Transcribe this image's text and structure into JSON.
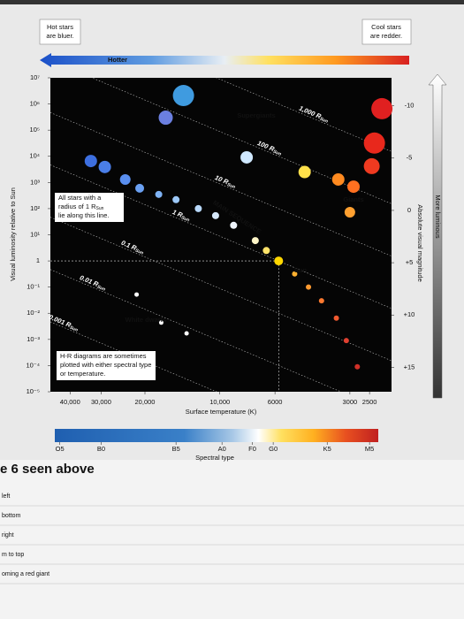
{
  "header": {
    "hot_note": [
      "Hot stars",
      "are bluer."
    ],
    "cool_note": [
      "Cool stars",
      "are redder."
    ],
    "arrow_label": "Hotter"
  },
  "chart_data": {
    "type": "scatter",
    "x_label": "Surface temperature (K)",
    "y_label": "Visual luminosity relative to Sun",
    "y2_label": "Absolute visual magnitude",
    "x2_label": "Spectral type",
    "side_arrow_label": "More luminous",
    "xscale": "log",
    "yscale": "log",
    "xlim": [
      48000,
      2040
    ],
    "ylim": [
      1e-05,
      10000000
    ],
    "xticks": [
      {
        "value": 40000,
        "label": "40,000"
      },
      {
        "value": 30000,
        "label": "30,000"
      },
      {
        "value": 20000,
        "label": "20,000"
      },
      {
        "value": 10000,
        "label": "10,000"
      },
      6000,
      3000,
      2500
    ],
    "yticks": [
      {
        "value": 10000000,
        "label": "10⁷"
      },
      {
        "value": 1000000,
        "label": "10⁶"
      },
      {
        "value": 100000,
        "label": "10⁵"
      },
      {
        "value": 10000,
        "label": "10⁴"
      },
      {
        "value": 1000,
        "label": "10³"
      },
      {
        "value": 100,
        "label": "10²"
      },
      {
        "value": 10,
        "label": "10¹"
      },
      1,
      {
        "value": 0.1,
        "label": "10⁻¹"
      },
      {
        "value": 0.01,
        "label": "10⁻²"
      },
      {
        "value": 0.001,
        "label": "10⁻³"
      },
      {
        "value": 0.0001,
        "label": "10⁻⁴"
      },
      {
        "value": 1e-05,
        "label": "10⁻⁵"
      }
    ],
    "y2lim": [
      17.33,
      -12.67
    ],
    "y2ticks": [
      -10,
      -5,
      0,
      {
        "value": 5,
        "label": "+5"
      },
      {
        "value": 10,
        "label": "+10"
      },
      {
        "value": 15,
        "label": "+15"
      }
    ],
    "x2ticks": [
      {
        "value": 44000,
        "label": "O5"
      },
      {
        "value": 30000,
        "label": "B0"
      },
      {
        "value": 15000,
        "label": "B5"
      },
      {
        "value": 9800,
        "label": "A0"
      },
      {
        "value": 7400,
        "label": "F0"
      },
      {
        "value": 6100,
        "label": "G0"
      },
      {
        "value": 3700,
        "label": "K5"
      },
      {
        "value": 2500,
        "label": "M5"
      }
    ],
    "radius_lines": {
      "values": [
        1000,
        100,
        10,
        1,
        0.1,
        0.01,
        0.001
      ],
      "labels": [
        "1,000 R",
        "100 R",
        "10 R",
        "1 R",
        "0.1 R",
        "0.01 R",
        "0.001 R"
      ],
      "subscript": "Sun"
    },
    "radius_note": {
      "lines": [
        "All stars with a",
        "radius of 1 R",
        "lie along this line."
      ],
      "subscript": "Sun"
    },
    "plot_note": [
      "H-R diagrams are sometimes",
      "plotted with either spectral type",
      "or temperature."
    ],
    "series": [
      {
        "name": "Supergiants",
        "x": [
          14000,
          16500,
          2230,
          2390,
          2450,
          7800,
          4560
        ],
        "values": [
          2100000,
          300000,
          660000,
          32000,
          4200,
          9100,
          2500
        ],
        "sizes": [
          12,
          8,
          12,
          12,
          9,
          7,
          7
        ],
        "colors": [
          "#3f9be0",
          "#6b7fe0",
          "#e02020",
          "#e8281c",
          "#ef3a20",
          "#cfe8ff",
          "#ffe04a"
        ]
      },
      {
        "name": "Giants",
        "x": [
          3340,
          2900,
          3000
        ],
        "values": [
          1300,
          690,
          73
        ],
        "sizes": [
          7,
          7,
          6
        ],
        "colors": [
          "#ff8a20",
          "#ff7020",
          "#ffa030"
        ]
      },
      {
        "name": "MAIN SEQUENCE",
        "x": [
          33000,
          29000,
          24000,
          21000,
          17600,
          15000,
          12200,
          10400,
          8800,
          7200,
          6500,
          5000,
          4400,
          3900,
          3400,
          3100,
          2800
        ],
        "values": [
          6600,
          3900,
          1300,
          600,
          350,
          220,
          100,
          54,
          23,
          6,
          2.5,
          0.32,
          0.1,
          0.03,
          0.0065,
          0.0009,
          9e-05
        ],
        "sizes": [
          7,
          7,
          6,
          5,
          4,
          4,
          4,
          4,
          4,
          4,
          4,
          3,
          3,
          3,
          3,
          3,
          3
        ],
        "colors": [
          "#3d6fe0",
          "#4a7ee8",
          "#5a8ff0",
          "#6aa0f2",
          "#7fb3f5",
          "#9cc8f8",
          "#b8d8fa",
          "#d6e8fb",
          "#eef4fb",
          "#fff6c8",
          "#ffe36a",
          "#ffb030",
          "#ff9a30",
          "#ff7a30",
          "#f05a30",
          "#e04030",
          "#d03028"
        ]
      },
      {
        "name": "White dwarfs",
        "x": [
          21600,
          17200,
          13600
        ],
        "values": [
          0.052,
          0.0044,
          0.0017
        ],
        "sizes": [
          2.5,
          2.5,
          2.5
        ],
        "colors": [
          "#ffffff",
          "#ffffff",
          "#ffffff"
        ]
      },
      {
        "name": "Sun",
        "x": [
          5800
        ],
        "values": [
          1
        ],
        "sizes": [
          5
        ],
        "colors": [
          "#ffd700"
        ]
      }
    ]
  },
  "question": {
    "heading": "e 6 seen above",
    "options": [
      "left",
      "bottom",
      "right",
      "m to top",
      "oming a red giant"
    ]
  }
}
